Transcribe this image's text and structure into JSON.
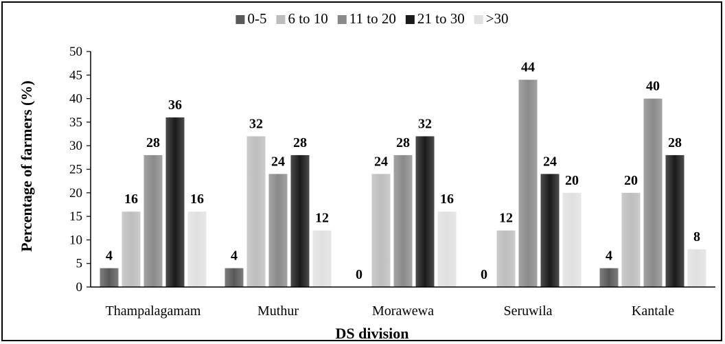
{
  "chart_data": {
    "type": "bar",
    "title": "",
    "xlabel": "DS division",
    "ylabel": "Percentage of farmers (%)",
    "ylim": [
      0,
      50
    ],
    "yticks": [
      0,
      5,
      10,
      15,
      20,
      25,
      30,
      35,
      40,
      45,
      50
    ],
    "grid": false,
    "legend_position": "top",
    "categories": [
      "Thampalagamam",
      "Muthur",
      "Morawewa",
      "Seruwila",
      "Kantale"
    ],
    "series": [
      {
        "name": "0-5",
        "color": "#595959",
        "values": [
          4,
          4,
          0,
          0,
          4
        ]
      },
      {
        "name": "6 to 10",
        "color": "#bdbdbd",
        "values": [
          16,
          32,
          24,
          12,
          20
        ]
      },
      {
        "name": "11 to 20",
        "color": "#8a8a8a",
        "values": [
          28,
          24,
          28,
          44,
          40
        ]
      },
      {
        "name": "21 to 30",
        "color": "#1a1a1a",
        "values": [
          36,
          28,
          32,
          24,
          28
        ]
      },
      {
        "name": ">30",
        "color": "#e0e0e0",
        "values": [
          16,
          12,
          16,
          20,
          8
        ]
      }
    ]
  }
}
